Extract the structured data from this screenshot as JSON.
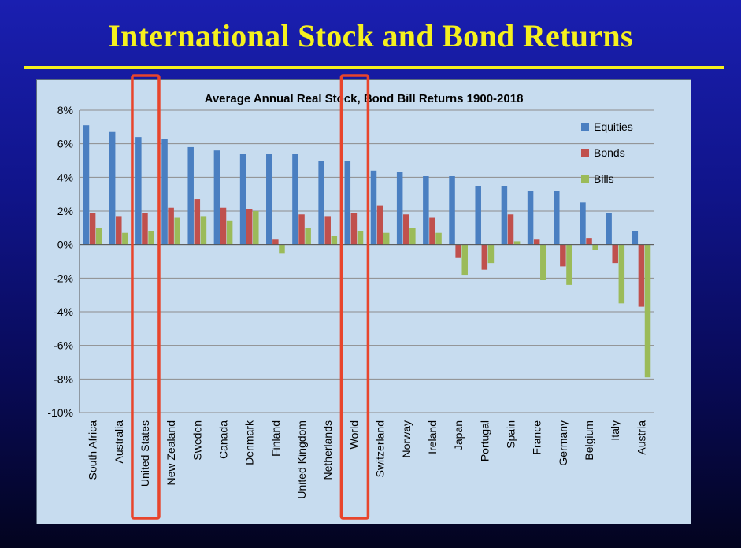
{
  "slide": {
    "title": "International Stock and Bond Returns"
  },
  "colors": {
    "background": "#10148a",
    "title": "#f5f01e",
    "panel": "#c7dcef",
    "highlight": "#e8452c"
  },
  "chart_data": {
    "type": "bar",
    "title": "Average Annual Real Stock, Bond Bill Returns  1900-2018",
    "xlabel": "",
    "ylabel": "",
    "ylim": [
      -10,
      8
    ],
    "yticks": [
      "8%",
      "6%",
      "4%",
      "2%",
      "0%",
      "-2%",
      "-4%",
      "-6%",
      "-8%",
      "-10%"
    ],
    "grid": true,
    "legend_position": "top-right",
    "categories": [
      "South Africa",
      "Australia",
      "United States",
      "New Zealand",
      "Sweden",
      "Canada",
      "Denmark",
      "Finland",
      "United Kingdom",
      "Netherlands",
      "World",
      "Switzerland",
      "Norway",
      "Ireland",
      "Japan",
      "Portugal",
      "Spain",
      "France",
      "Germany",
      "Belgium",
      "Italy",
      "Austria"
    ],
    "series": [
      {
        "name": "Equities",
        "color": "#4a7fc1",
        "values": [
          7.1,
          6.7,
          6.4,
          6.3,
          5.8,
          5.6,
          5.4,
          5.4,
          5.4,
          5.0,
          5.0,
          4.4,
          4.3,
          4.1,
          4.1,
          3.5,
          3.5,
          3.2,
          3.2,
          2.5,
          1.9,
          0.8
        ]
      },
      {
        "name": "Bonds",
        "color": "#c0504d",
        "values": [
          1.9,
          1.7,
          1.9,
          2.2,
          2.7,
          2.2,
          2.1,
          0.3,
          1.8,
          1.7,
          1.9,
          2.3,
          1.8,
          1.6,
          -0.8,
          -1.5,
          1.8,
          0.3,
          -1.3,
          0.4,
          -1.1,
          -3.7
        ]
      },
      {
        "name": "Bills",
        "color": "#9bbb59",
        "values": [
          1.0,
          0.7,
          0.8,
          1.6,
          1.7,
          1.4,
          2.0,
          -0.5,
          1.0,
          0.5,
          0.8,
          0.7,
          1.0,
          0.7,
          -1.8,
          -1.1,
          0.2,
          -2.1,
          -2.4,
          -0.3,
          -3.5,
          -7.9
        ]
      }
    ],
    "highlighted_categories": [
      "United States",
      "World"
    ]
  }
}
